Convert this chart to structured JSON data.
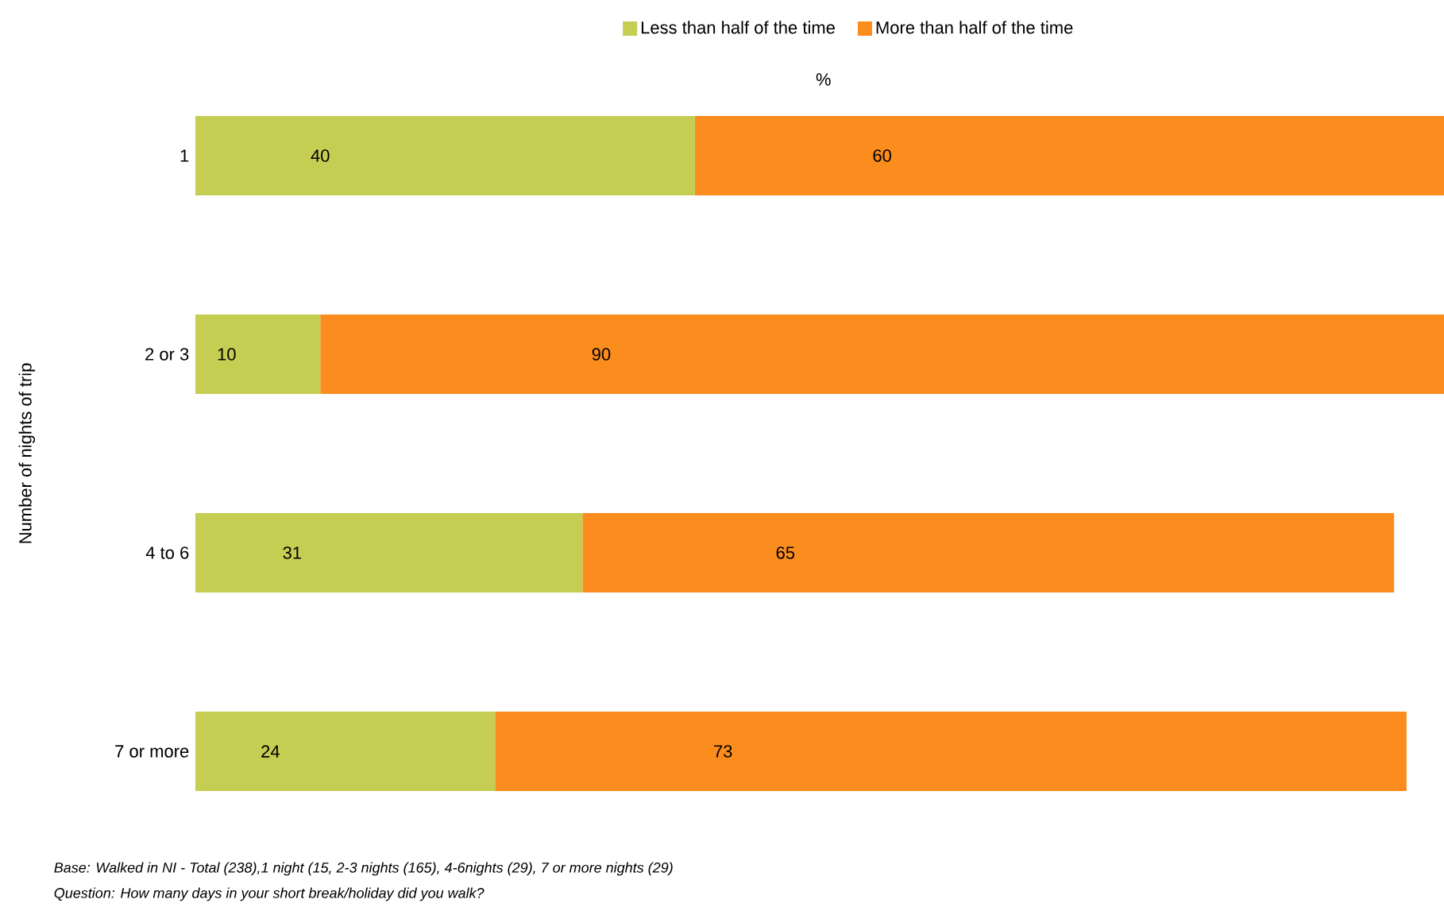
{
  "chart_data": {
    "type": "bar",
    "orientation": "horizontal",
    "stacked": true,
    "data_labels": true,
    "legend": "top",
    "tick_labels": "y",
    "xlabel": "%",
    "ylabel": "Number of nights of trip",
    "categories": [
      "1",
      "2 or 3",
      "4 to 6",
      "7 or more"
    ],
    "series": [
      {
        "name": "Less than half of the time",
        "color": "#c5cd52",
        "values": [
          40,
          10,
          31,
          24
        ]
      },
      {
        "name": "More than half of the time",
        "color": "#fb8c1e",
        "values": [
          60,
          90,
          65,
          73
        ]
      }
    ],
    "annotations": [
      "Base: Walked in NI - Total (238),1 night (15, 2-3 nights (165), 4-6nights (29), 7 or more nights (29)",
      "Question: How many days in your short break/holiday did you walk?"
    ]
  }
}
